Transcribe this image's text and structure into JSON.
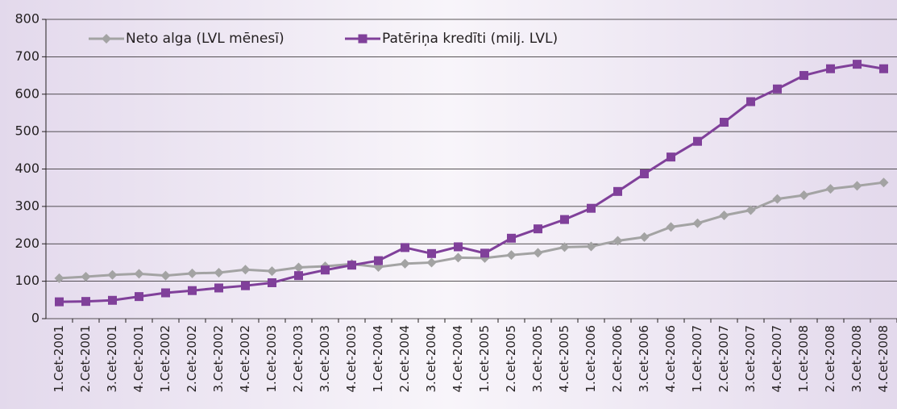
{
  "chart_data": {
    "type": "line",
    "categories": [
      "1.Cet-2001",
      "2.Cet-2001",
      "3.Cet-2001",
      "4.Cet-2001",
      "1.Cet-2002",
      "2.Cet-2002",
      "3.Cet-2002",
      "4.Cet-2002",
      "1.Cet-2003",
      "2.Cet-2003",
      "3.Cet-2003",
      "4.Cet-2003",
      "1.Cet-2004",
      "2.Cet-2004",
      "3.Cet-2004",
      "4.Cet-2004",
      "1.Cet-2005",
      "2.Cet-2005",
      "3.Cet-2005",
      "4.Cet-2005",
      "1.Cet-2006",
      "2.Cet-2006",
      "3.Cet-2006",
      "4.Cet-2006",
      "1.Cet-2007",
      "2.Cet-2007",
      "3.Cet-2007",
      "4.Cet-2007",
      "1.Cet-2008",
      "2.Cet-2008",
      "3.Cet-2008",
      "4.Cet-2008"
    ],
    "series": [
      {
        "name": "Neto alga (LVL mēnesī)",
        "color": "#a3a3a3",
        "marker": "diamond",
        "values": [
          108,
          112,
          117,
          120,
          115,
          121,
          123,
          131,
          127,
          137,
          140,
          146,
          138,
          147,
          150,
          163,
          162,
          170,
          176,
          191,
          193,
          208,
          218,
          245,
          255,
          276,
          290,
          320,
          330,
          347,
          355,
          364
        ]
      },
      {
        "name": "Patēriņa kredīti (milj. LVL)",
        "color": "#80409a",
        "marker": "square",
        "values": [
          45,
          46,
          49,
          59,
          69,
          75,
          82,
          88,
          96,
          115,
          130,
          143,
          155,
          190,
          174,
          192,
          175,
          215,
          240,
          265,
          295,
          340,
          387,
          432,
          474,
          525,
          580,
          614,
          650,
          668,
          680,
          668
        ]
      }
    ],
    "ylim": [
      0,
      800
    ],
    "yticks": [
      0,
      100,
      200,
      300,
      400,
      500,
      600,
      700,
      800
    ],
    "grid": true,
    "legend": "top"
  }
}
